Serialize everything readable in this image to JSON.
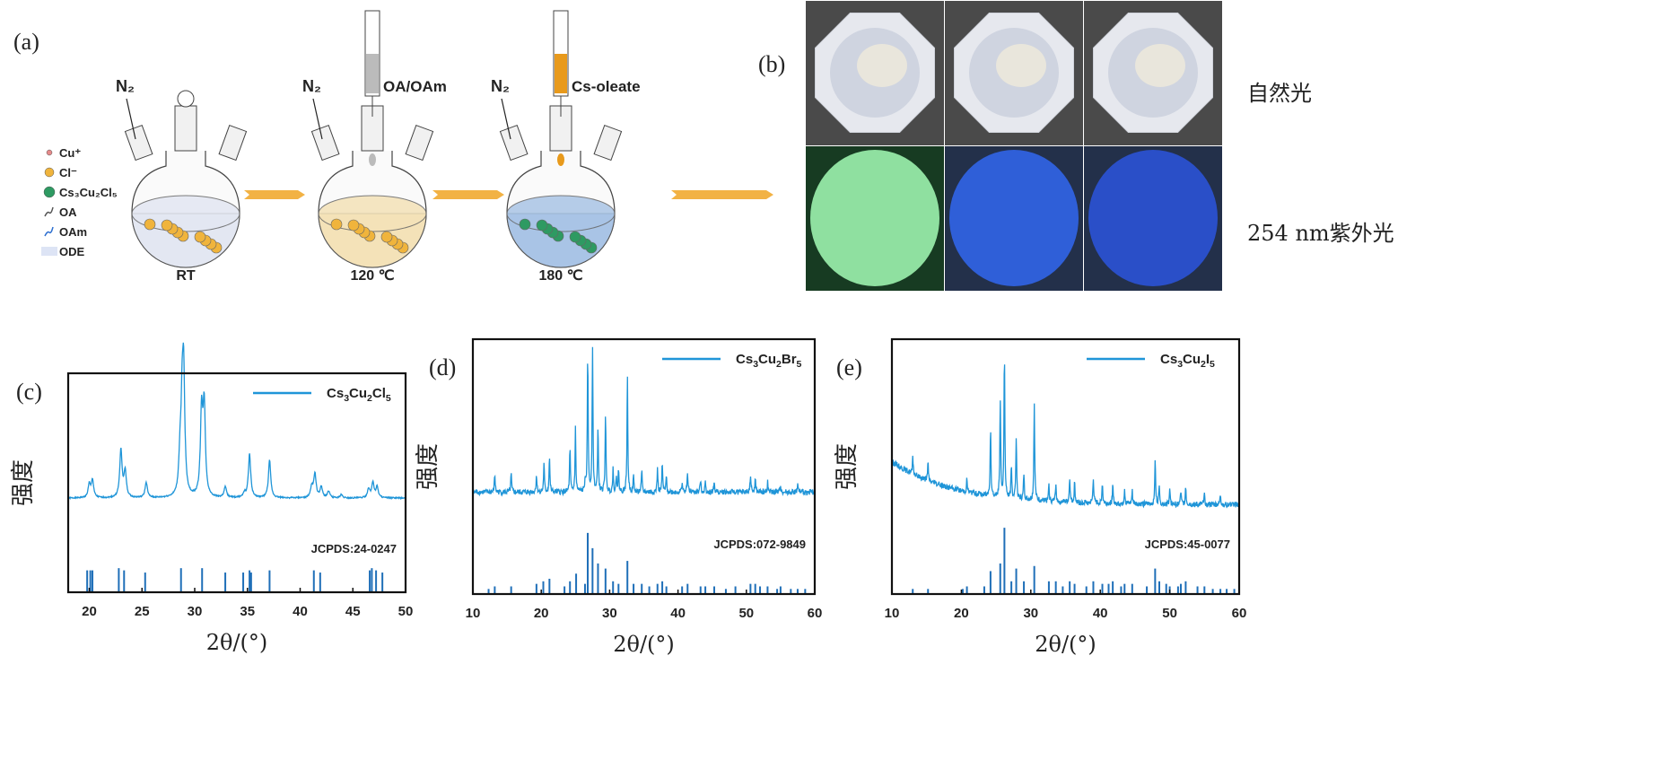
{
  "panels": {
    "a": "(a)",
    "b": "(b)",
    "c": "(c)",
    "d": "(d)",
    "e": "(e)"
  },
  "schematic": {
    "legend": [
      {
        "label": "Cu⁺",
        "color": "#e58a8a"
      },
      {
        "label": "Cl⁻",
        "color": "#f0b43c"
      },
      {
        "label": "Cs₃Cu₂Cl₅",
        "color": "#2e9a62"
      },
      {
        "label": "OA",
        "color": "#555555"
      },
      {
        "label": "OAm",
        "color": "#2d6fd0"
      },
      {
        "label": "ODE",
        "color": "#dde4f5"
      }
    ],
    "gas": "N₂",
    "steps": [
      {
        "temp": "RT",
        "liquid": "#e3e7f2",
        "syringe": "",
        "syringe_color": ""
      },
      {
        "temp": "120 ℃",
        "liquid": "#f4e2b8",
        "syringe": "OA/OAm",
        "syringe_color": "#bbbbbb"
      },
      {
        "temp": "180 ℃",
        "liquid": "#a9c4e6",
        "syringe": "Cs-oleate",
        "syringe_color": "#e89a1c"
      }
    ],
    "arrow_color": "#f2b244"
  },
  "photos": {
    "rows": [
      {
        "label": "自然光",
        "samples": [
          "#e9e6dc",
          "#e9e6dc",
          "#e9e6dc"
        ]
      },
      {
        "label": "254 nm紫外光",
        "samples": [
          "#8fe0a0",
          "#2f5fd8",
          "#2a4fc8"
        ]
      }
    ]
  },
  "chart_data": [
    {
      "type": "line",
      "title": "",
      "xlabel": "2θ/(°)",
      "ylabel": "强度",
      "xlim": [
        18,
        50
      ],
      "xticks": [
        20,
        25,
        30,
        35,
        40,
        45,
        50
      ],
      "ylim": [
        0,
        100
      ],
      "legend": {
        "label": "Cs₃Cu₂Cl₅",
        "placement": "top-right"
      },
      "color": "#1f95d8",
      "baseline": 43,
      "peak_width": 0.13,
      "peaks": [
        [
          20.0,
          6
        ],
        [
          20.3,
          8
        ],
        [
          23.0,
          22
        ],
        [
          23.4,
          12
        ],
        [
          25.4,
          7
        ],
        [
          28.6,
          15
        ],
        [
          28.8,
          35
        ],
        [
          28.95,
          52
        ],
        [
          30.65,
          38
        ],
        [
          30.9,
          40
        ],
        [
          32.9,
          5
        ],
        [
          34.7,
          2
        ],
        [
          35.2,
          20
        ],
        [
          37.1,
          17
        ],
        [
          41.1,
          5
        ],
        [
          41.4,
          11
        ],
        [
          42.0,
          5
        ],
        [
          42.7,
          3
        ],
        [
          43.9,
          1.5
        ],
        [
          46.5,
          4
        ],
        [
          46.9,
          7
        ],
        [
          47.3,
          5
        ]
      ],
      "reference": {
        "label": "JCPDS:24-0247",
        "sticks": [
          [
            19.8,
            10
          ],
          [
            20.1,
            10
          ],
          [
            20.3,
            10
          ],
          [
            22.8,
            11
          ],
          [
            23.3,
            10
          ],
          [
            25.3,
            9
          ],
          [
            28.7,
            11
          ],
          [
            30.7,
            11
          ],
          [
            32.9,
            9
          ],
          [
            34.6,
            9
          ],
          [
            35.2,
            10
          ],
          [
            35.35,
            9
          ],
          [
            37.1,
            10
          ],
          [
            41.3,
            10
          ],
          [
            41.9,
            9
          ],
          [
            46.6,
            10
          ],
          [
            46.8,
            11
          ],
          [
            47.2,
            10
          ],
          [
            47.8,
            9
          ]
        ]
      }
    },
    {
      "type": "line",
      "title": "",
      "xlabel": "2θ/(°)",
      "ylabel": "强度",
      "xlim": [
        10,
        60
      ],
      "xticks": [
        10,
        20,
        30,
        40,
        50,
        60
      ],
      "ylim": [
        0,
        100
      ],
      "legend": {
        "label": "Cs₃Cu₂Br₅",
        "placement": "top-right"
      },
      "color": "#1f95d8",
      "baseline": 40,
      "peak_width": 0.07,
      "peaks": [
        [
          13.2,
          7
        ],
        [
          15.6,
          7
        ],
        [
          19.3,
          7
        ],
        [
          20.4,
          11
        ],
        [
          21.2,
          14
        ],
        [
          24.2,
          17
        ],
        [
          25.0,
          25
        ],
        [
          26.4,
          4
        ],
        [
          26.8,
          55
        ],
        [
          27.5,
          57
        ],
        [
          28.3,
          26
        ],
        [
          29.4,
          31
        ],
        [
          30.5,
          9
        ],
        [
          31.0,
          6
        ],
        [
          31.3,
          8
        ],
        [
          32.6,
          46
        ],
        [
          33.5,
          6
        ],
        [
          34.7,
          8
        ],
        [
          37.0,
          9
        ],
        [
          37.7,
          11
        ],
        [
          38.3,
          6
        ],
        [
          40.6,
          4
        ],
        [
          41.4,
          8
        ],
        [
          43.3,
          5
        ],
        [
          44.0,
          4
        ],
        [
          45.3,
          4
        ],
        [
          50.6,
          7
        ],
        [
          51.3,
          5
        ],
        [
          53.1,
          4
        ],
        [
          55.0,
          3
        ],
        [
          57.5,
          3
        ]
      ],
      "reference": {
        "label": "JCPDS:072-9849",
        "sticks": [
          [
            12.3,
            2
          ],
          [
            13.2,
            3
          ],
          [
            15.6,
            3
          ],
          [
            19.3,
            4
          ],
          [
            20.3,
            5
          ],
          [
            21.2,
            6
          ],
          [
            23.4,
            3
          ],
          [
            24.2,
            5
          ],
          [
            25.1,
            8
          ],
          [
            26.4,
            4
          ],
          [
            26.8,
            24
          ],
          [
            27.5,
            18
          ],
          [
            28.3,
            12
          ],
          [
            29.4,
            10
          ],
          [
            30.5,
            5
          ],
          [
            31.3,
            4
          ],
          [
            32.6,
            13
          ],
          [
            33.5,
            4
          ],
          [
            34.7,
            4
          ],
          [
            35.8,
            3
          ],
          [
            37.0,
            4
          ],
          [
            37.7,
            5
          ],
          [
            38.3,
            3
          ],
          [
            40.6,
            3
          ],
          [
            41.4,
            4
          ],
          [
            43.3,
            3
          ],
          [
            44.0,
            3
          ],
          [
            45.3,
            3
          ],
          [
            47.0,
            2
          ],
          [
            48.4,
            3
          ],
          [
            50.6,
            4
          ],
          [
            51.3,
            4
          ],
          [
            52.0,
            3
          ],
          [
            53.1,
            3
          ],
          [
            54.5,
            2
          ],
          [
            55.0,
            3
          ],
          [
            56.5,
            2
          ],
          [
            57.5,
            2
          ],
          [
            58.6,
            2
          ]
        ]
      }
    },
    {
      "type": "line",
      "title": "",
      "xlabel": "2θ/(°)",
      "ylabel": "强度",
      "xlim": [
        10,
        60
      ],
      "xticks": [
        10,
        20,
        30,
        40,
        50,
        60
      ],
      "ylim": [
        0,
        100
      ],
      "legend": {
        "label": "Cs₃Cu₂I₅",
        "placement": "top-right"
      },
      "color": "#1f95d8",
      "baseline": 35,
      "background_decay": {
        "amplitude": 17,
        "scale": 9
      },
      "peak_width": 0.07,
      "peaks": [
        [
          13.0,
          6
        ],
        [
          15.2,
          7
        ],
        [
          20.8,
          5
        ],
        [
          24.2,
          28
        ],
        [
          25.6,
          38
        ],
        [
          26.2,
          58
        ],
        [
          27.2,
          12
        ],
        [
          27.9,
          25
        ],
        [
          29.0,
          10
        ],
        [
          30.5,
          38
        ],
        [
          32.6,
          6
        ],
        [
          33.6,
          7
        ],
        [
          35.6,
          10
        ],
        [
          36.3,
          8
        ],
        [
          39.0,
          10
        ],
        [
          40.3,
          8
        ],
        [
          41.8,
          7
        ],
        [
          43.5,
          6
        ],
        [
          44.6,
          5
        ],
        [
          47.9,
          18
        ],
        [
          48.5,
          8
        ],
        [
          50.0,
          6
        ],
        [
          51.6,
          5
        ],
        [
          52.3,
          7
        ],
        [
          55.0,
          4
        ],
        [
          57.3,
          4
        ]
      ],
      "reference": {
        "label": "JCPDS:45-0077",
        "sticks": [
          [
            13.0,
            2
          ],
          [
            15.2,
            2
          ],
          [
            20.2,
            2
          ],
          [
            20.8,
            3
          ],
          [
            23.3,
            3
          ],
          [
            24.2,
            9
          ],
          [
            25.6,
            12
          ],
          [
            26.2,
            26
          ],
          [
            27.2,
            5
          ],
          [
            27.9,
            10
          ],
          [
            29.0,
            5
          ],
          [
            30.5,
            11
          ],
          [
            32.6,
            5
          ],
          [
            33.6,
            5
          ],
          [
            34.6,
            3
          ],
          [
            35.6,
            5
          ],
          [
            36.3,
            4
          ],
          [
            38.0,
            3
          ],
          [
            39.0,
            5
          ],
          [
            40.3,
            4
          ],
          [
            41.2,
            4
          ],
          [
            41.8,
            5
          ],
          [
            43.0,
            3
          ],
          [
            43.5,
            4
          ],
          [
            44.6,
            4
          ],
          [
            46.7,
            3
          ],
          [
            47.9,
            10
          ],
          [
            48.5,
            5
          ],
          [
            49.5,
            4
          ],
          [
            50.0,
            3
          ],
          [
            51.2,
            3
          ],
          [
            51.6,
            4
          ],
          [
            52.3,
            5
          ],
          [
            54.0,
            3
          ],
          [
            55.0,
            3
          ],
          [
            56.2,
            2
          ],
          [
            57.3,
            2
          ],
          [
            58.2,
            2
          ],
          [
            59.3,
            2
          ]
        ]
      }
    }
  ]
}
